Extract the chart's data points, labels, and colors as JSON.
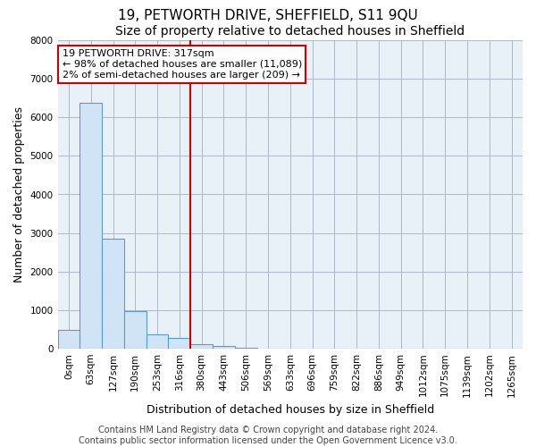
{
  "title": "19, PETWORTH DRIVE, SHEFFIELD, S11 9QU",
  "subtitle": "Size of property relative to detached houses in Sheffield",
  "xlabel": "Distribution of detached houses by size in Sheffield",
  "ylabel": "Number of detached properties",
  "annotation_lines": [
    "19 PETWORTH DRIVE: 317sqm",
    "← 98% of detached houses are smaller (11,089)",
    "2% of semi-detached houses are larger (209) →"
  ],
  "footer_lines": [
    "Contains HM Land Registry data © Crown copyright and database right 2024.",
    "Contains public sector information licensed under the Open Government Licence v3.0."
  ],
  "categories": [
    "0sqm",
    "63sqm",
    "127sqm",
    "190sqm",
    "253sqm",
    "316sqm",
    "380sqm",
    "443sqm",
    "506sqm",
    "569sqm",
    "633sqm",
    "696sqm",
    "759sqm",
    "822sqm",
    "886sqm",
    "949sqm",
    "1012sqm",
    "1075sqm",
    "1139sqm",
    "1202sqm",
    "1265sqm"
  ],
  "bar_heights": [
    480,
    6370,
    2850,
    970,
    380,
    280,
    120,
    60,
    20,
    10,
    5,
    2,
    1,
    1,
    0,
    0,
    0,
    0,
    0,
    0,
    0
  ],
  "bar_face_color": "#d0e4f5",
  "bar_edge_color": "#5b9bd5",
  "plot_bg_color": "#e8f0f8",
  "red_line_x": 5.5,
  "ylim": [
    0,
    8000
  ],
  "yticks": [
    0,
    1000,
    2000,
    3000,
    4000,
    5000,
    6000,
    7000,
    8000
  ],
  "grid_color": "#b0b8c8",
  "annotation_box_color": "#cc0000",
  "title_fontsize": 11,
  "subtitle_fontsize": 10,
  "axis_label_fontsize": 9,
  "tick_fontsize": 7.5,
  "footer_fontsize": 7,
  "annotation_fontsize": 8
}
